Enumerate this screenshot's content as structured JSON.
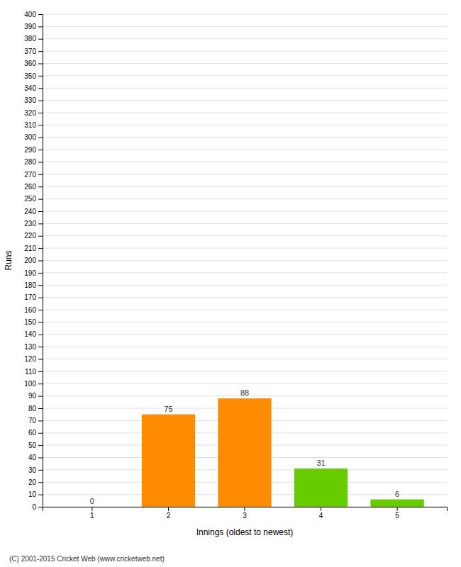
{
  "chart_data": {
    "type": "bar",
    "xlabel": "Innings (oldest to newest)",
    "ylabel": "Runs",
    "annotations": [
      "(C) 2001-2015 Cricket Web (www.cricketweb.net)"
    ],
    "categories": [
      1,
      2,
      3,
      4,
      5
    ],
    "values": [
      0,
      75,
      88,
      31,
      6
    ],
    "colors": [
      "#ff8c00",
      "#ff8c00",
      "#ff8c00",
      "#66cc00",
      "#66cc00"
    ],
    "ylim": [
      0,
      400
    ],
    "yticks": [
      0,
      10,
      20,
      30,
      40,
      50,
      60,
      70,
      80,
      90,
      100,
      110,
      120,
      130,
      140,
      150,
      160,
      170,
      180,
      190,
      200,
      210,
      220,
      230,
      240,
      250,
      260,
      270,
      280,
      290,
      300,
      310,
      320,
      330,
      340,
      350,
      360,
      370,
      380,
      390,
      400
    ],
    "grid": true,
    "data_labels": true
  }
}
